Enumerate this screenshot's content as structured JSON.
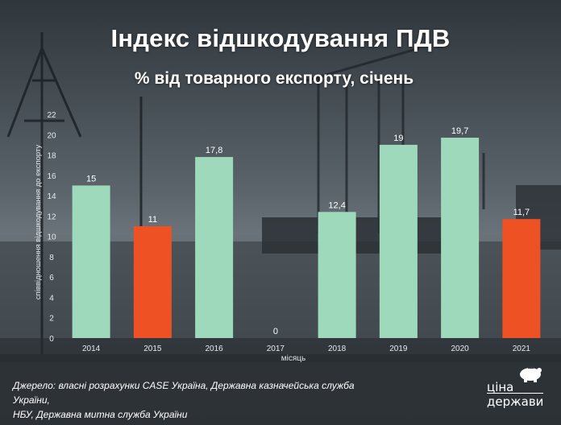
{
  "header": {
    "title": "Індекс відшкодування ПДВ",
    "subtitle": "% від товарного експорту, січень"
  },
  "footer": {
    "source_line1": "Джерело: власні розрахунки CASE Україна, Державна казначейська служба України,",
    "source_line2": "НБУ, Державна митна служба України"
  },
  "logo": {
    "line1": "ціна",
    "line2": "держави"
  },
  "colors": {
    "green": "#9fd9bc",
    "red": "#ee5224",
    "text": "#ffffff"
  },
  "chart_data": {
    "type": "bar",
    "title": "Індекс відшкодування ПДВ",
    "subtitle": "% від товарного експорту, січень",
    "xlabel": "місяць",
    "ylabel": "співвідношення відшкодування до експорту",
    "categories": [
      "2014",
      "2015",
      "2016",
      "2017",
      "2018",
      "2019",
      "2020",
      "2021"
    ],
    "values": [
      15,
      11,
      17.8,
      0,
      12.4,
      19,
      19.7,
      11.7
    ],
    "value_labels": [
      "15",
      "11",
      "17,8",
      "0",
      "12,4",
      "19",
      "19,7",
      "11,7"
    ],
    "bar_colors": [
      "green",
      "red",
      "green",
      "green",
      "green",
      "green",
      "green",
      "red"
    ],
    "ylim": [
      0,
      22
    ],
    "yticks": [
      "0",
      "2",
      "4",
      "6",
      "8",
      "10",
      "12",
      "14",
      "16",
      "18",
      "20",
      "22"
    ],
    "grid": false,
    "legend": "none"
  }
}
